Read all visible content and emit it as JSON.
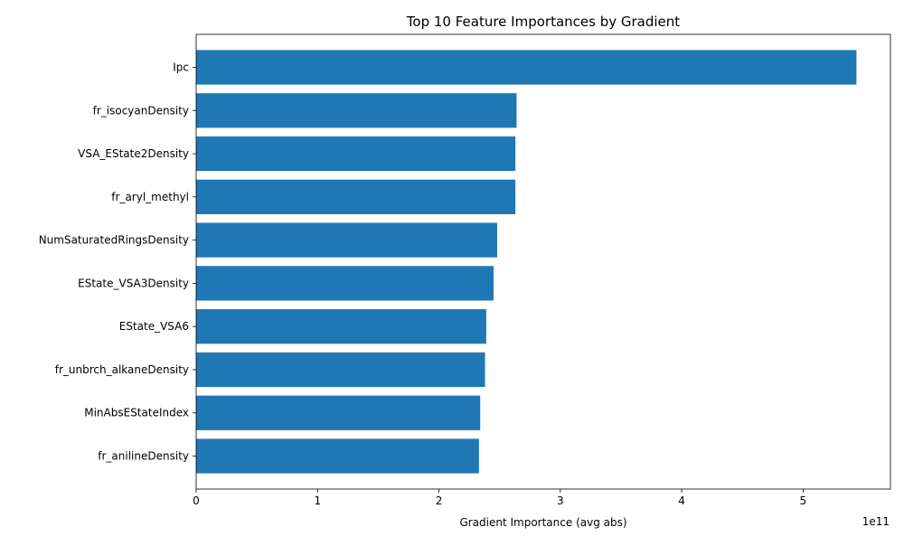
{
  "chart_data": {
    "type": "bar",
    "orientation": "horizontal",
    "title": "Top 10 Feature Importances by Gradient",
    "xlabel": "Gradient Importance (avg abs)",
    "ylabel": "",
    "x_offset_label": "1e11",
    "x_scale_factor": 100000000000.0,
    "xlim": [
      0,
      5.72
    ],
    "x_ticks": [
      0,
      1,
      2,
      3,
      4,
      5
    ],
    "x_tick_labels": [
      "0",
      "1",
      "2",
      "3",
      "4",
      "5"
    ],
    "grid": false,
    "bar_color": "#1f77b4",
    "categories": [
      "Ipc",
      "fr_isocyanDensity",
      "VSA_EState2Density",
      "fr_aryl_methyl",
      "NumSaturatedRingsDensity",
      "EState_VSA3Density",
      "EState_VSA6",
      "fr_unbrch_alkaneDensity",
      "MinAbsEStateIndex",
      "fr_anilineDensity"
    ],
    "values": [
      5.44,
      2.64,
      2.63,
      2.63,
      2.48,
      2.45,
      2.39,
      2.38,
      2.34,
      2.33
    ]
  }
}
